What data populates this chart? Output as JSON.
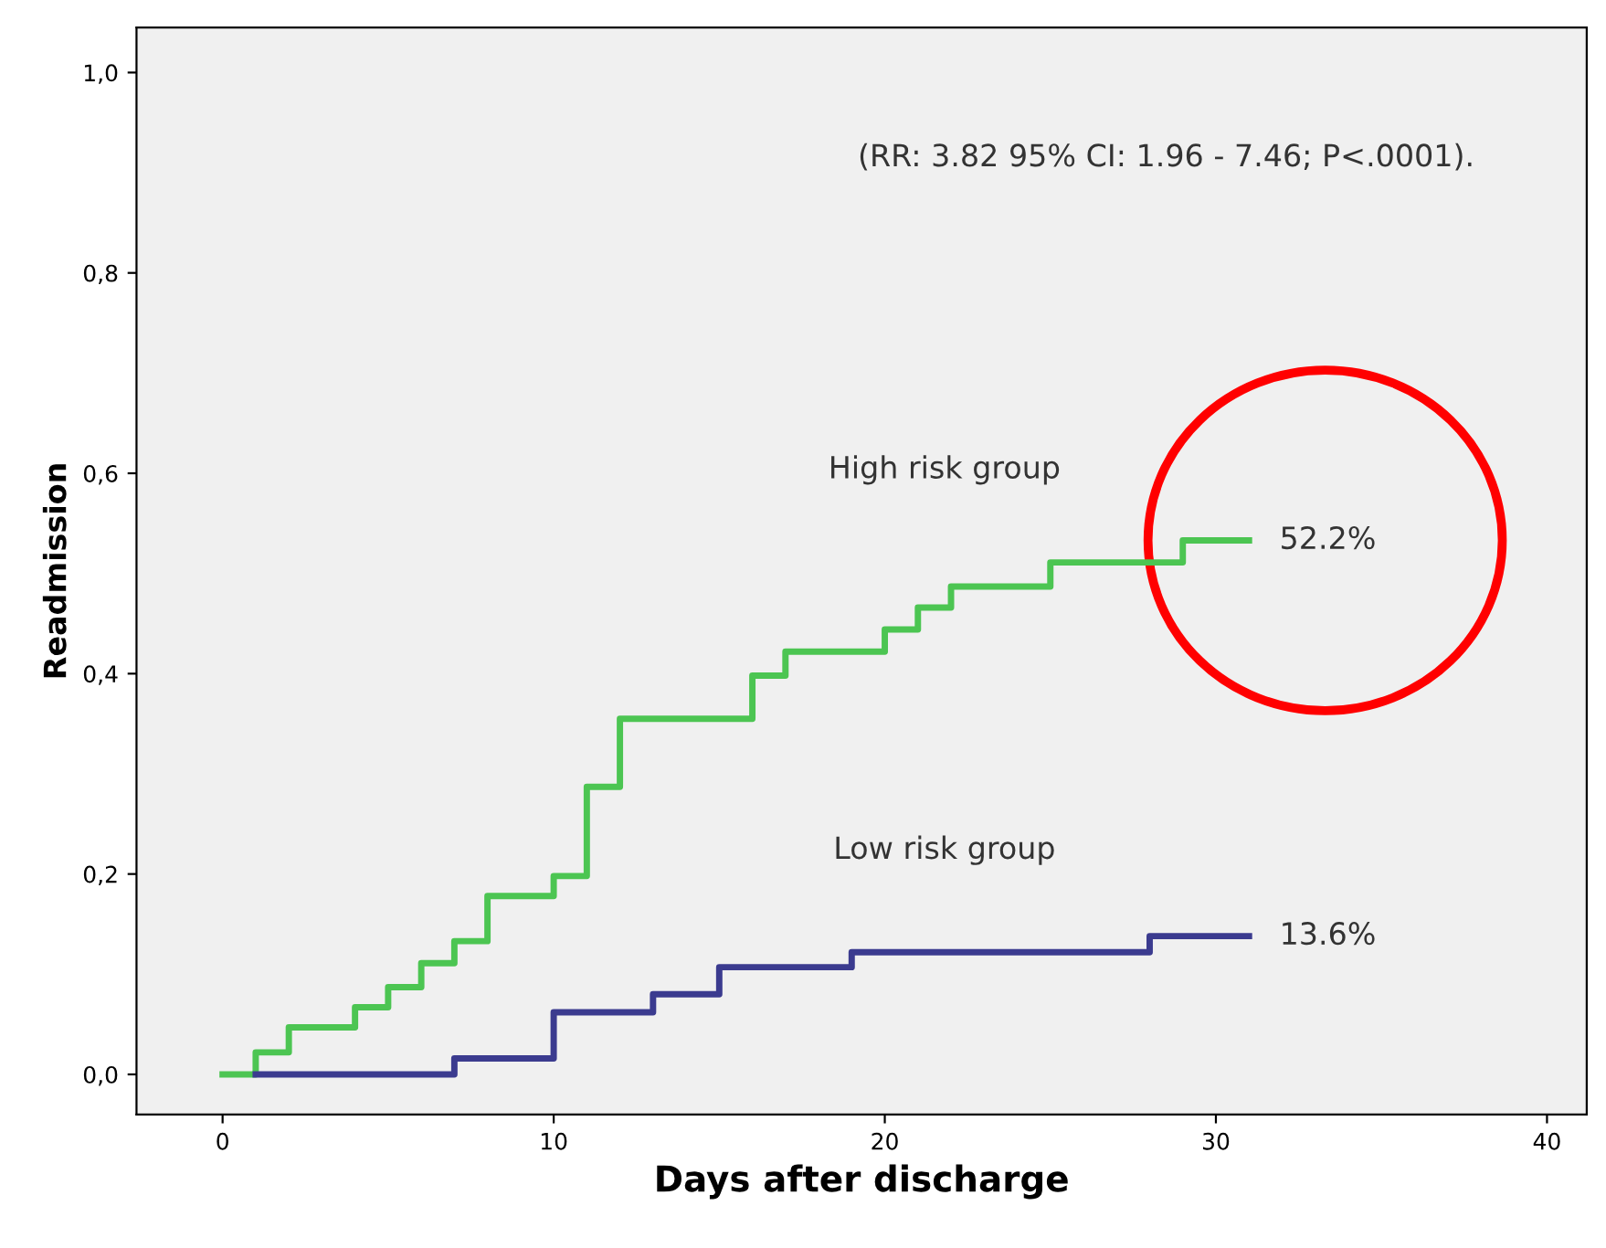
{
  "chart_data": {
    "type": "step",
    "xlabel": "Days after discharge",
    "ylabel": "Readmission",
    "xlim": [
      -2.6,
      41.2
    ],
    "ylim": [
      -0.04,
      1.045
    ],
    "xticks": [
      0,
      10,
      20,
      30,
      40
    ],
    "yticks": [
      {
        "value": 0,
        "label": "0,0"
      },
      {
        "value": 0.2,
        "label": "0,2"
      },
      {
        "value": 0.4,
        "label": "0,4"
      },
      {
        "value": 0.6,
        "label": "0,6"
      },
      {
        "value": 0.8,
        "label": "0,8"
      },
      {
        "value": 1.0,
        "label": "1,0"
      }
    ],
    "grid": false,
    "legend": false,
    "series": [
      {
        "name": "High risk group",
        "color": "#4cc552",
        "x": [
          0,
          1,
          2,
          4,
          5,
          6,
          7,
          8,
          10,
          11,
          12,
          16,
          17,
          20,
          21,
          22,
          25,
          29,
          31
        ],
        "values": [
          0,
          0.022,
          0.047,
          0.067,
          0.087,
          0.111,
          0.133,
          0.178,
          0.198,
          0.287,
          0.355,
          0.398,
          0.422,
          0.444,
          0.466,
          0.487,
          0.511,
          0.533,
          0.533
        ]
      },
      {
        "name": "Low risk group",
        "color": "#3b3b8f",
        "x": [
          1,
          7,
          10,
          13,
          15,
          19,
          28,
          31
        ],
        "values": [
          0,
          0.016,
          0.062,
          0.08,
          0.107,
          0.122,
          0.138,
          0.138
        ]
      }
    ],
    "annotations": [
      "(RR: 3.82 95% CI: 1.96 - 7.46; P<.0001).",
      {
        "text": "52.2%",
        "x": 31,
        "y": 0.533
      },
      {
        "text": "13.6%",
        "x": 31,
        "y": 0.138
      }
    ]
  }
}
